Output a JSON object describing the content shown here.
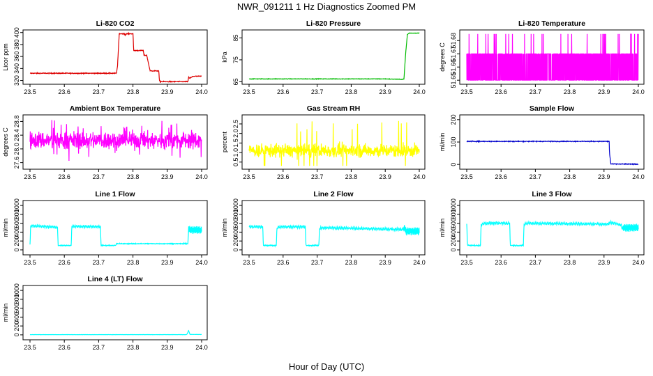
{
  "figure": {
    "title": "NWR_091211  1 Hz Diagnostics Zoomed PM",
    "xlabel": "Hour of Day (UTC)"
  },
  "chart_data": [
    {
      "id": "co2",
      "type": "line",
      "title": "Li-820 CO2",
      "ylabel": "Licor ppm",
      "color": "#dd0000",
      "xlim": [
        23.5,
        24.0
      ],
      "ylim": [
        316,
        402
      ],
      "xticks": [
        "23.5",
        "23.6",
        "23.7",
        "23.8",
        "23.9",
        "24.0"
      ],
      "yticks": [
        "320",
        "340",
        "360",
        "380",
        "400"
      ],
      "ytick_values": [
        320,
        340,
        360,
        380,
        400
      ],
      "x": [
        23.5,
        23.75,
        23.752,
        23.755,
        23.76,
        23.775,
        23.777,
        23.779,
        23.8,
        23.802,
        23.83,
        23.832,
        23.84,
        23.85,
        23.875,
        23.877,
        23.88,
        23.96,
        23.962,
        23.965,
        23.97,
        23.975,
        24.0
      ],
      "y": [
        332,
        332,
        332,
        345,
        398,
        398,
        395,
        398,
        398,
        370,
        370,
        362,
        362,
        336,
        336,
        320,
        318,
        318,
        325,
        324,
        325,
        327,
        327
      ],
      "noise": 0.6
    },
    {
      "id": "pressure",
      "type": "line",
      "title": "Li-820 Pressure",
      "ylabel": "kPa",
      "color": "#00bb00",
      "xlim": [
        23.5,
        24.0
      ],
      "ylim": [
        64.5,
        88
      ],
      "xticks": [
        "23.5",
        "23.6",
        "23.7",
        "23.8",
        "23.9",
        "24.0"
      ],
      "yticks": [
        "65",
        "75",
        "85"
      ],
      "ytick_values": [
        65,
        75,
        85
      ],
      "x": [
        23.5,
        23.9,
        23.95,
        23.955,
        23.96,
        23.965,
        23.97,
        24.0
      ],
      "y": [
        66.3,
        66.3,
        66.1,
        66.3,
        78,
        86.5,
        87.2,
        87.2
      ],
      "noise": 0.1
    },
    {
      "id": "licor_temp",
      "type": "line",
      "title": "Li-820 Temperature",
      "ylabel": "degrees C",
      "color": "#ff00ff",
      "xlim": [
        23.5,
        24.0
      ],
      "ylim": [
        51.648,
        51.687
      ],
      "xticks": [
        "23.5",
        "23.6",
        "23.7",
        "23.8",
        "23.9",
        "24.0"
      ],
      "yticks": [
        "51.65",
        "51.66",
        "51.67",
        "51.68"
      ],
      "ytick_values": [
        51.65,
        51.66,
        51.67,
        51.68
      ],
      "levels": [
        51.65,
        51.67,
        51.685
      ],
      "note": "quantized signal oscillating between 51.65 and 51.67 with occasional spikes to 51.685"
    },
    {
      "id": "ambient_box_temp",
      "type": "line",
      "title": "Ambient Box Temperature",
      "ylabel": "degrees C",
      "color": "#ff00ff",
      "xlim": [
        23.5,
        24.0
      ],
      "ylim": [
        27.45,
        28.95
      ],
      "xticks": [
        "23.5",
        "23.6",
        "23.7",
        "23.8",
        "23.9",
        "24.0"
      ],
      "yticks": [
        "27.6",
        "28.0",
        "28.4",
        "28.8"
      ],
      "ytick_values": [
        27.6,
        28.0,
        28.4,
        28.8
      ],
      "mean": 28.25,
      "spread": 0.22,
      "min": 27.55,
      "max": 28.85
    },
    {
      "id": "gas_rh",
      "type": "line",
      "title": "Gas Stream RH",
      "ylabel": "percent",
      "color": "#ffff00",
      "xlim": [
        23.5,
        24.0
      ],
      "ylim": [
        0.2,
        2.9
      ],
      "xticks": [
        "23.5",
        "23.6",
        "23.7",
        "23.8",
        "23.9",
        "24.0"
      ],
      "yticks": [
        "0.5",
        "1.0",
        "1.5",
        "2.0",
        "2.5"
      ],
      "ytick_values": [
        0.5,
        1.0,
        1.5,
        2.0,
        2.5
      ],
      "mean": 1.1,
      "spread": 0.3,
      "min": 0.3,
      "max": 2.75
    },
    {
      "id": "sample_flow",
      "type": "line",
      "title": "Sample Flow",
      "ylabel": "ml/min",
      "color": "#0000cc",
      "xlim": [
        23.5,
        24.0
      ],
      "ylim": [
        -15,
        215
      ],
      "xticks": [
        "23.5",
        "23.6",
        "23.7",
        "23.8",
        "23.9",
        "24.0"
      ],
      "yticks": [
        "0",
        "100",
        "200"
      ],
      "ytick_values": [
        0,
        100,
        200
      ],
      "x": [
        23.5,
        23.915,
        23.916,
        23.92,
        24.0
      ],
      "y": [
        103,
        103,
        50,
        2,
        1
      ],
      "noise": 1.5
    },
    {
      "id": "line1_flow",
      "type": "line",
      "title": "Line 1 Flow",
      "ylabel": "ml/min",
      "color": "#00ffff",
      "xlim": [
        23.5,
        24.0
      ],
      "ylim": [
        -80,
        1080
      ],
      "xticks": [
        "23.5",
        "23.6",
        "23.7",
        "23.8",
        "23.9",
        "24.0"
      ],
      "yticks": [
        "0",
        "200",
        "400",
        "600",
        "800",
        "1000"
      ],
      "ytick_values": [
        0,
        200,
        400,
        600,
        800,
        1000
      ],
      "x": [
        23.5,
        23.502,
        23.505,
        23.58,
        23.582,
        23.62,
        23.622,
        23.625,
        23.705,
        23.707,
        23.75,
        23.752,
        23.96,
        23.962,
        23.965,
        24.0
      ],
      "y": [
        120,
        540,
        540,
        510,
        100,
        100,
        540,
        530,
        520,
        100,
        100,
        140,
        140,
        500,
        450,
        450
      ],
      "noise": 8
    },
    {
      "id": "line2_flow",
      "type": "line",
      "title": "Line 2 Flow",
      "ylabel": "ml/min",
      "color": "#00ffff",
      "xlim": [
        23.5,
        24.0
      ],
      "ylim": [
        -80,
        1080
      ],
      "xticks": [
        "23.5",
        "23.6",
        "23.7",
        "23.8",
        "23.9",
        "24.0"
      ],
      "yticks": [
        "0",
        "200",
        "400",
        "600",
        "800",
        "1000"
      ],
      "ytick_values": [
        0,
        200,
        400,
        600,
        800,
        1000
      ],
      "x": [
        23.5,
        23.54,
        23.542,
        23.58,
        23.582,
        23.59,
        23.665,
        23.667,
        23.705,
        23.707,
        23.715,
        23.95,
        23.958,
        23.96,
        24.0
      ],
      "y": [
        520,
        520,
        100,
        100,
        500,
        520,
        520,
        100,
        100,
        480,
        500,
        460,
        500,
        420,
        420
      ],
      "noise": 12
    },
    {
      "id": "line3_flow",
      "type": "line",
      "title": "Line 3 Flow",
      "ylabel": "ml/min",
      "color": "#00ffff",
      "xlim": [
        23.5,
        24.0
      ],
      "ylim": [
        -80,
        1080
      ],
      "xticks": [
        "23.5",
        "23.6",
        "23.7",
        "23.8",
        "23.9",
        "24.0"
      ],
      "yticks": [
        "0",
        "200",
        "400",
        "600",
        "800",
        "1000"
      ],
      "ytick_values": [
        0,
        200,
        400,
        600,
        800,
        1000
      ],
      "x": [
        23.5,
        23.502,
        23.505,
        23.54,
        23.542,
        23.55,
        23.625,
        23.627,
        23.665,
        23.667,
        23.675,
        23.91,
        23.92,
        23.95,
        23.952,
        24.0
      ],
      "y": [
        600,
        100,
        100,
        100,
        560,
        600,
        600,
        100,
        100,
        580,
        600,
        580,
        620,
        560,
        500,
        500
      ],
      "noise": 12
    },
    {
      "id": "line4_flow",
      "type": "line",
      "title": "Line 4 (LT) Flow",
      "ylabel": "ml/min",
      "color": "#00ffff",
      "xlim": [
        23.5,
        24.0
      ],
      "ylim": [
        -80,
        1080
      ],
      "xticks": [
        "23.5",
        "23.6",
        "23.7",
        "23.8",
        "23.9",
        "24.0"
      ],
      "yticks": [
        "0",
        "200",
        "400",
        "600",
        "800",
        "1000"
      ],
      "ytick_values": [
        0,
        200,
        400,
        600,
        800,
        1000
      ],
      "x": [
        23.5,
        23.955,
        23.958,
        23.962,
        23.966,
        24.0
      ],
      "y": [
        5,
        5,
        20,
        100,
        10,
        8
      ],
      "noise": 2
    }
  ]
}
